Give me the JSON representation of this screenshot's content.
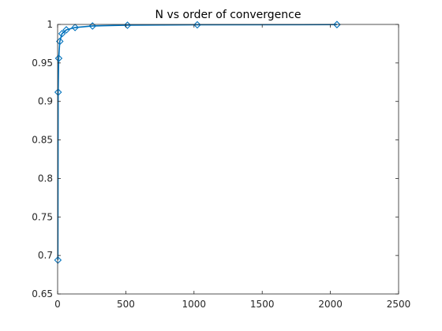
{
  "chart_data": {
    "type": "line",
    "title": "N vs order of convergence",
    "xlabel": "",
    "ylabel": "",
    "xlim": [
      0,
      2500
    ],
    "ylim": [
      0.65,
      1
    ],
    "xticks": [
      0,
      500,
      1000,
      1500,
      2000,
      2500
    ],
    "yticks": [
      0.65,
      0.7,
      0.75,
      0.8,
      0.85,
      0.9,
      0.95,
      1
    ],
    "xtick_labels": [
      "0",
      "500",
      "1000",
      "1500",
      "2000",
      "2500"
    ],
    "ytick_labels": [
      "0.65",
      "0.7",
      "0.75",
      "0.8",
      "0.85",
      "0.9",
      "0.95",
      "1"
    ],
    "grid": false,
    "marker": "diamond",
    "color": "#0072BD",
    "series": [
      {
        "x": [
          2,
          4,
          8,
          16,
          32,
          64,
          128,
          256,
          512,
          1024,
          2048
        ],
        "y": [
          0.694,
          0.912,
          0.956,
          0.978,
          0.988,
          0.993,
          0.996,
          0.998,
          0.999,
          0.9995,
          0.9998
        ]
      }
    ]
  }
}
